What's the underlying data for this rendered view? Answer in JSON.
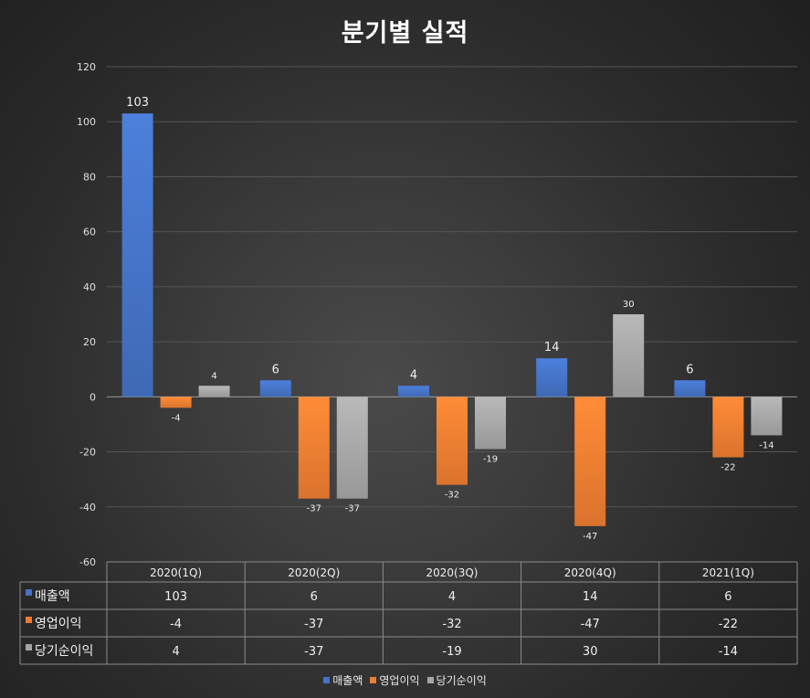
{
  "chart_data": {
    "type": "bar",
    "title": "분기별 실적",
    "categories": [
      "2020(1Q)",
      "2020(2Q)",
      "2020(3Q)",
      "2020(4Q)",
      "2021(1Q)"
    ],
    "series": [
      {
        "name": "매출액",
        "values": [
          103,
          6,
          4,
          14,
          6
        ],
        "color": "#4472c4"
      },
      {
        "name": "영업이익",
        "values": [
          -4,
          -37,
          -32,
          -47,
          -22
        ],
        "color": "#ed7d31"
      },
      {
        "name": "당기순이익",
        "values": [
          4,
          -37,
          -19,
          30,
          -14
        ],
        "color": "#a5a5a5"
      }
    ],
    "ylim": [
      -60,
      120
    ],
    "yticks": [
      120,
      100,
      80,
      60,
      40,
      20,
      0,
      -20,
      -40,
      -60
    ],
    "grid": true,
    "legend_position": "bottom",
    "data_table": true
  }
}
